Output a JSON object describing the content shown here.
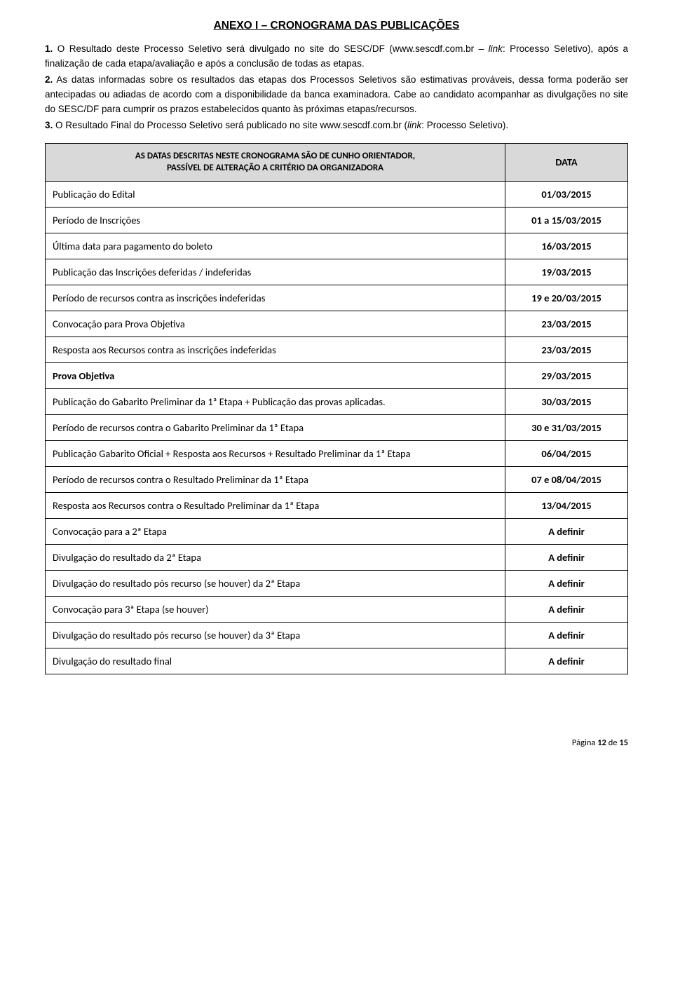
{
  "title": "ANEXO I – CRONOGRAMA DAS PUBLICAÇÕES",
  "intro": {
    "p1_num": "1.",
    "p1": "O Resultado deste Processo Seletivo será divulgado no site do SESC/DF (www.sescdf.com.br – ",
    "p1_link": "link",
    "p1_b": ": Processo Seletivo), após a finalização de cada etapa/avaliação e após a conclusão de todas as etapas.",
    "p2_num": "2.",
    "p2": "As datas informadas sobre os resultados das etapas dos Processos Seletivos são estimativas prováveis, dessa forma poderão ser antecipadas ou adiadas de acordo com a disponibilidade da banca examinadora. Cabe ao candidato acompanhar as divulgações no site do SESC/DF para cumprir os prazos estabelecidos quanto às próximas etapas/recursos.",
    "p3_num": "3.",
    "p3": "O Resultado Final do Processo Seletivo será publicado no site www.sescdf.com.br (",
    "p3_link": "link",
    "p3_b": ": Processo Seletivo)."
  },
  "table": {
    "header_desc_l1": "AS DATAS DESCRITAS NESTE CRONOGRAMA SÃO DE CUNHO ORIENTADOR,",
    "header_desc_l2": "PASSÍVEL DE ALTERAÇÃO A CRITÉRIO DA ORGANIZADORA",
    "header_data": "DATA",
    "rows": [
      {
        "desc": "Publicação do Edital",
        "date": "01/03/2015",
        "bold": false
      },
      {
        "desc": "Período de Inscrições",
        "date": "01 a 15/03/2015",
        "bold": false
      },
      {
        "desc": "Última data para pagamento do boleto",
        "date": "16/03/2015",
        "bold": false
      },
      {
        "desc": "Publicação das Inscrições deferidas / indeferidas",
        "date": "19/03/2015",
        "bold": false
      },
      {
        "desc": "Período de recursos contra as inscrições indeferidas",
        "date": "19 e 20/03/2015",
        "bold": false
      },
      {
        "desc": "Convocação para Prova Objetiva",
        "date": "23/03/2015",
        "bold": false
      },
      {
        "desc": "Resposta aos Recursos contra as inscrições indeferidas",
        "date": "23/03/2015",
        "bold": false
      },
      {
        "desc": "Prova Objetiva",
        "date": "29/03/2015",
        "bold": true
      },
      {
        "desc": "Publicação do Gabarito Preliminar da 1ª Etapa + Publicação das provas aplicadas.",
        "date": "30/03/2015",
        "bold": false
      },
      {
        "desc": "Período de recursos contra o Gabarito Preliminar da 1ª Etapa",
        "date": "30 e 31/03/2015",
        "bold": false
      },
      {
        "desc": "Publicação Gabarito Oficial + Resposta aos Recursos + Resultado Preliminar da 1ª Etapa",
        "date": "06/04/2015",
        "bold": false
      },
      {
        "desc": "Período de recursos contra o Resultado Preliminar da 1ª Etapa",
        "date": "07 e 08/04/2015",
        "bold": false
      },
      {
        "desc": "Resposta aos Recursos contra o Resultado Preliminar da 1ª Etapa",
        "date": "13/04/2015",
        "bold": false
      },
      {
        "desc": "Convocação para a 2ª Etapa",
        "date": "A definir",
        "bold": false
      },
      {
        "desc": "Divulgação do resultado da 2ª Etapa",
        "date": "A definir",
        "bold": false
      },
      {
        "desc": "Divulgação do resultado pós recurso (se houver) da 2ª Etapa",
        "date": "A definir",
        "bold": false
      },
      {
        "desc": "Convocação para 3ª Etapa (se houver)",
        "date": "A definir",
        "bold": false
      },
      {
        "desc": "Divulgação do resultado pós recurso (se houver) da 3ª Etapa",
        "date": "A definir",
        "bold": false
      },
      {
        "desc": "Divulgação do resultado final",
        "date": "A definir",
        "bold": false
      }
    ]
  },
  "footer": {
    "prefix": "Página ",
    "page": "12",
    "mid": " de ",
    "total": "15"
  }
}
